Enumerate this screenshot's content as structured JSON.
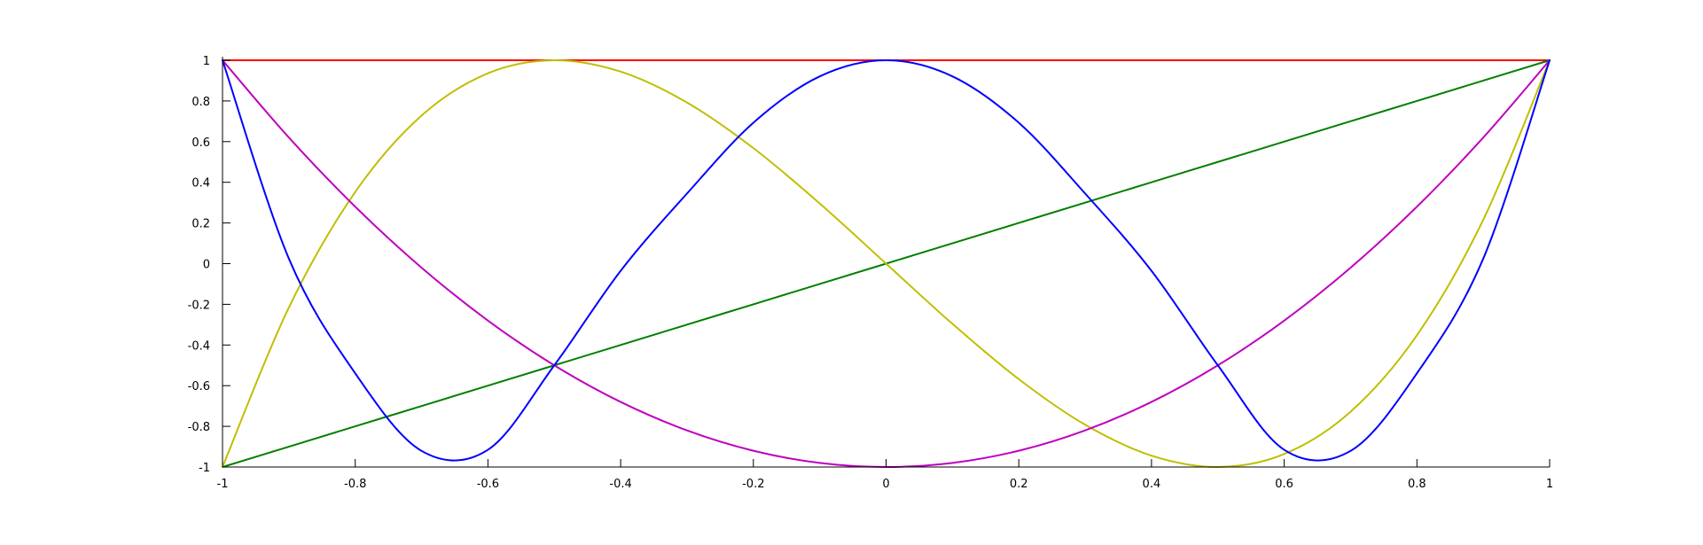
{
  "chart_data": {
    "type": "line",
    "title": "",
    "xlabel": "",
    "ylabel": "",
    "xlim": [
      -1,
      1
    ],
    "ylim": [
      -1,
      1
    ],
    "grid": false,
    "legend": "none",
    "x_ticks": [
      -1,
      -0.8,
      -0.6,
      -0.4,
      -0.2,
      0,
      0.2,
      0.4,
      0.6,
      0.8,
      1
    ],
    "x_tick_labels": [
      "-1",
      "-0.8",
      "-0.6",
      "-0.4",
      "-0.2",
      "0",
      "0.2",
      "0.4",
      "0.6",
      "0.8",
      "1"
    ],
    "y_ticks": [
      -1,
      -0.8,
      -0.6,
      -0.4,
      -0.2,
      0,
      0.2,
      0.4,
      0.6,
      0.8,
      1
    ],
    "y_tick_labels": [
      "-1",
      "-0.8",
      "-0.6",
      "-0.4",
      "-0.2",
      "0",
      "0.2",
      "0.4",
      "0.6",
      "0.8",
      "1"
    ],
    "x": [
      -1,
      -0.9,
      -0.8,
      -0.7,
      -0.6,
      -0.5,
      -0.4,
      -0.3,
      -0.2,
      -0.1,
      0,
      0.1,
      0.2,
      0.3,
      0.4,
      0.5,
      0.6,
      0.7,
      0.8,
      0.9,
      1
    ],
    "series": [
      {
        "color": "#ff0000",
        "values": [
          1,
          1,
          1,
          1,
          1,
          1,
          1,
          1,
          1,
          1,
          1,
          1,
          1,
          1,
          1,
          1,
          1,
          1,
          1,
          1,
          1
        ]
      },
      {
        "color": "#007f00",
        "values": [
          -1,
          -0.9,
          -0.8,
          -0.7,
          -0.6,
          -0.5,
          -0.4,
          -0.3,
          -0.2,
          -0.1,
          0,
          0.1,
          0.2,
          0.3,
          0.4,
          0.5,
          0.6,
          0.7,
          0.8,
          0.9,
          1
        ]
      },
      {
        "color": "#bfbf00",
        "values": [
          -1,
          -0.216,
          0.352,
          0.728,
          0.936,
          1,
          0.944,
          0.792,
          0.568,
          0.296,
          0,
          -0.296,
          -0.568,
          -0.792,
          -0.944,
          -1,
          -0.936,
          -0.728,
          -0.352,
          0.216,
          1
        ]
      },
      {
        "color": "#bf00bf",
        "values": [
          1,
          0.62,
          0.28,
          -0.02,
          -0.28,
          -0.5,
          -0.68,
          -0.82,
          -0.92,
          -0.98,
          -1,
          -0.98,
          -0.92,
          -0.82,
          -0.68,
          -0.5,
          -0.28,
          -0.02,
          0.28,
          0.62,
          1
        ]
      },
      {
        "color": "#0000ff",
        "values": [
          1,
          0.0248,
          -0.5392,
          -0.9208,
          -0.9152,
          -0.5,
          -0.0352,
          0.3448,
          0.6928,
          0.9208,
          1,
          0.9208,
          0.6928,
          0.3448,
          -0.0352,
          -0.5,
          -0.9152,
          -0.9208,
          -0.5392,
          0.0248,
          1
        ]
      }
    ]
  }
}
